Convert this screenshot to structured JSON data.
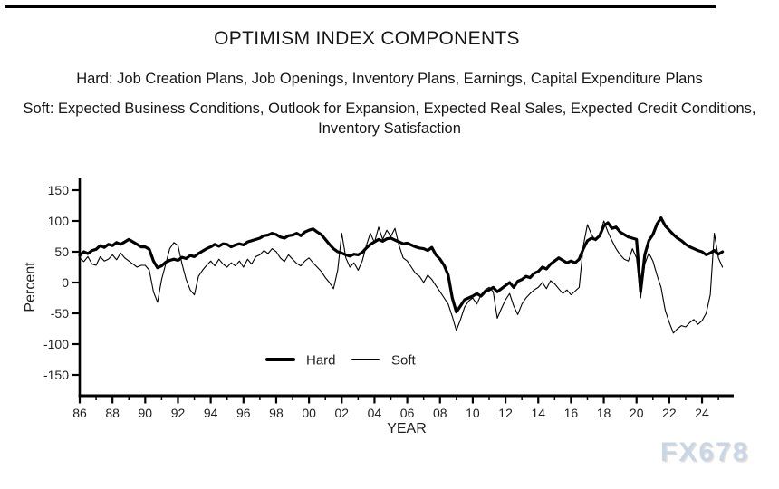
{
  "page": {
    "title": "OPTIMISM INDEX COMPONENTS",
    "subtitle_hard": "Hard: Job Creation Plans, Job Openings, Inventory Plans, Earnings, Capital Expenditure Plans",
    "subtitle_soft": "Soft: Expected Business Conditions, Outlook for Expansion, Expected Real Sales, Expected Credit Conditions, Inventory Satisfaction",
    "watermark": "FX678"
  },
  "chart_data": {
    "type": "line",
    "title": "OPTIMISM INDEX COMPONENTS",
    "xlabel": "YEAR",
    "ylabel": "Percent",
    "xlim": [
      1986,
      2026
    ],
    "ylim": [
      -150,
      150
    ],
    "grid": false,
    "legend_position": "inside-bottom-center",
    "line_color": "#000000",
    "y_ticks": [
      150,
      100,
      50,
      0,
      -50,
      -100,
      -150
    ],
    "y_tick_labels": [
      "150",
      "100",
      "50",
      "0",
      "-50",
      "-100",
      "-150"
    ],
    "x_major_ticks": [
      1986,
      1988,
      1990,
      1992,
      1994,
      1996,
      1998,
      2000,
      2002,
      2004,
      2006,
      2008,
      2010,
      2012,
      2014,
      2016,
      2018,
      2020,
      2022,
      2024
    ],
    "x_tick_labels": [
      "86",
      "88",
      "90",
      "92",
      "94",
      "96",
      "98",
      "00",
      "02",
      "04",
      "06",
      "08",
      "10",
      "12",
      "14",
      "16",
      "18",
      "20",
      "22",
      "24"
    ],
    "x_minor_ticks": [
      1987,
      1989,
      1991,
      1993,
      1995,
      1997,
      1999,
      2001,
      2003,
      2005,
      2007,
      2009,
      2011,
      2013,
      2015,
      2017,
      2019,
      2021,
      2023,
      2025
    ],
    "x_start": 1986,
    "x_step": 0.25,
    "series": [
      {
        "name": "Hard",
        "stroke_width": 3.2,
        "values": [
          44,
          50,
          47,
          52,
          54,
          60,
          57,
          62,
          60,
          65,
          62,
          66,
          70,
          66,
          62,
          58,
          58,
          54,
          35,
          24,
          27,
          33,
          36,
          38,
          36,
          41,
          39,
          44,
          42,
          47,
          51,
          55,
          58,
          62,
          59,
          63,
          62,
          58,
          61,
          63,
          61,
          66,
          68,
          70,
          72,
          76,
          77,
          80,
          78,
          74,
          72,
          76,
          77,
          80,
          76,
          82,
          85,
          87,
          82,
          78,
          70,
          62,
          55,
          50,
          48,
          45,
          43,
          46,
          45,
          49,
          56,
          62,
          66,
          70,
          67,
          71,
          72,
          69,
          66,
          63,
          64,
          61,
          58,
          56,
          55,
          52,
          57,
          45,
          38,
          28,
          12,
          -25,
          -48,
          -38,
          -28,
          -25,
          -22,
          -18,
          -22,
          -15,
          -12,
          -8,
          -15,
          -10,
          -5,
          0,
          -8,
          2,
          5,
          10,
          8,
          15,
          18,
          25,
          22,
          30,
          35,
          40,
          36,
          32,
          35,
          32,
          38,
          55,
          68,
          72,
          70,
          76,
          92,
          97,
          88,
          90,
          82,
          78,
          74,
          72,
          70,
          -15,
          45,
          68,
          78,
          95,
          105,
          92,
          85,
          78,
          72,
          68,
          62,
          58,
          55,
          52,
          50,
          45,
          48,
          52,
          46,
          50
        ]
      },
      {
        "name": "Soft",
        "stroke_width": 1.1,
        "values": [
          40,
          34,
          42,
          30,
          28,
          42,
          35,
          38,
          45,
          37,
          48,
          40,
          35,
          30,
          25,
          28,
          28,
          20,
          -15,
          -32,
          5,
          30,
          55,
          65,
          60,
          30,
          5,
          -12,
          -20,
          10,
          20,
          28,
          35,
          27,
          38,
          30,
          25,
          32,
          27,
          35,
          25,
          38,
          30,
          42,
          45,
          52,
          47,
          55,
          50,
          40,
          34,
          45,
          38,
          31,
          27,
          35,
          40,
          32,
          25,
          18,
          8,
          0,
          -10,
          20,
          80,
          40,
          25,
          32,
          20,
          35,
          60,
          80,
          65,
          90,
          70,
          85,
          75,
          88,
          60,
          40,
          35,
          25,
          15,
          10,
          0,
          12,
          5,
          -5,
          -15,
          -25,
          -35,
          -55,
          -78,
          -60,
          -40,
          -30,
          -25,
          -35,
          -20,
          -12,
          -8,
          -15,
          -58,
          -42,
          -28,
          -18,
          -38,
          -52,
          -35,
          -25,
          -18,
          -12,
          -8,
          0,
          -10,
          3,
          -2,
          -10,
          -18,
          -12,
          -20,
          -14,
          -8,
          60,
          94,
          78,
          68,
          75,
          100,
          82,
          68,
          55,
          45,
          38,
          35,
          55,
          40,
          -25,
          30,
          48,
          35,
          12,
          -8,
          -45,
          -65,
          -82,
          -75,
          -70,
          -72,
          -65,
          -60,
          -68,
          -62,
          -50,
          -20,
          80,
          40,
          25
        ]
      }
    ]
  }
}
